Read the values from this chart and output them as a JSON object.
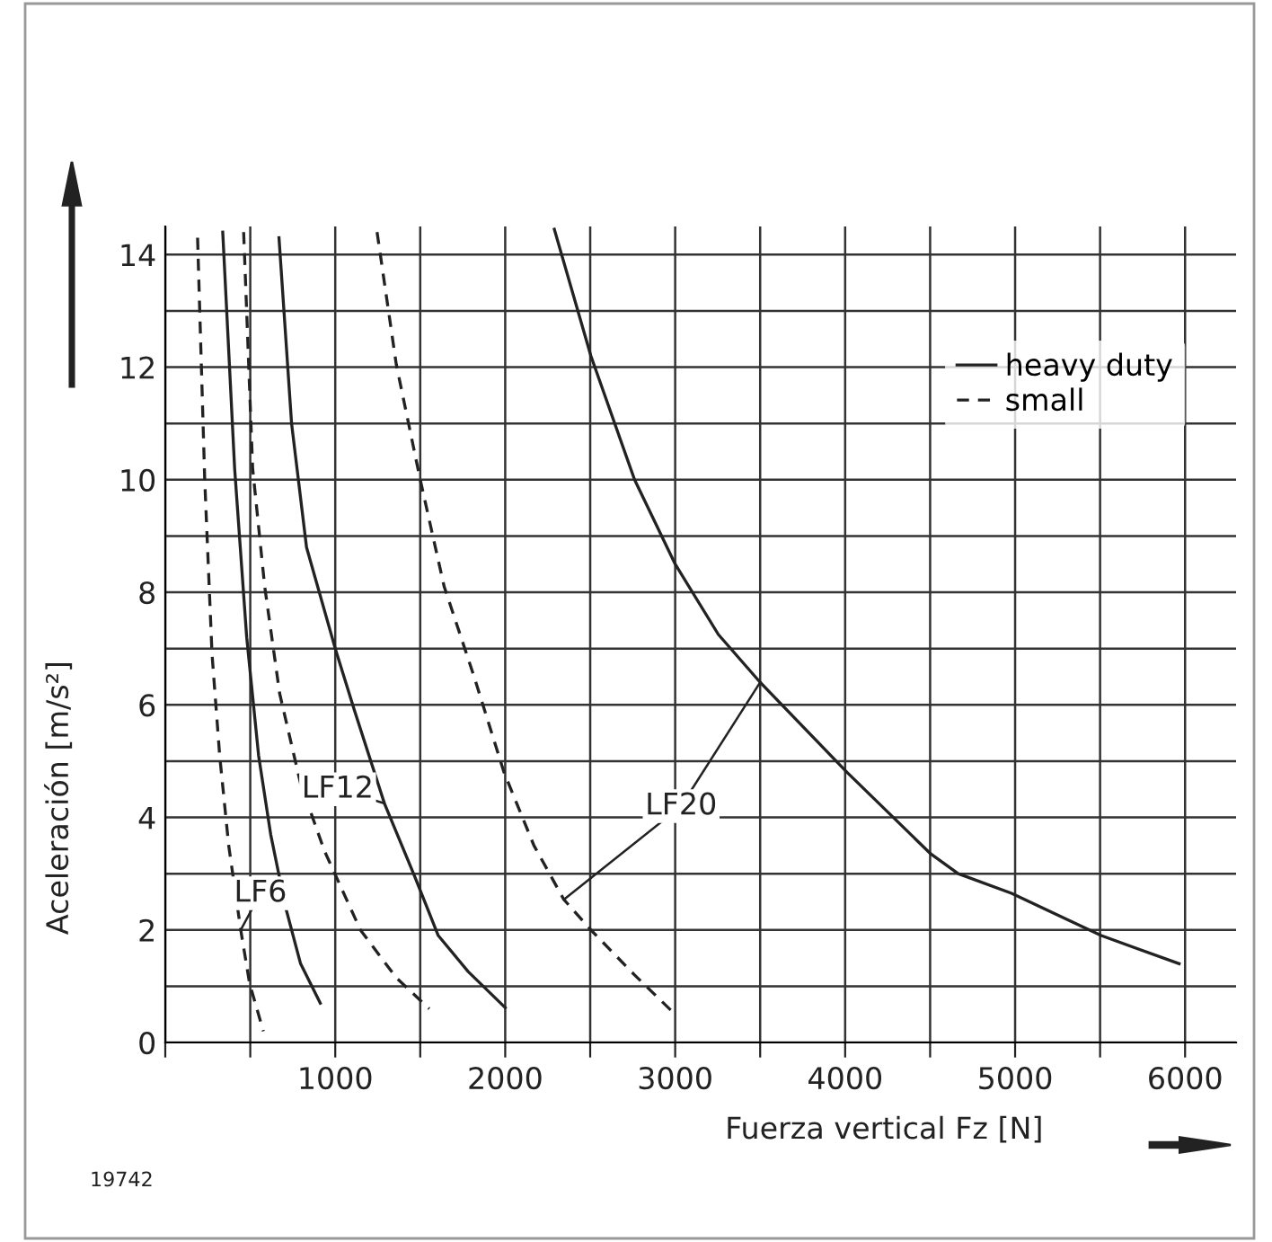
{
  "chart_data": {
    "type": "line",
    "xlabel": "Fuerza vertical Fz [N]",
    "ylabel": "Aceleración [m/s²]",
    "xlim": [
      0,
      6300
    ],
    "ylim": [
      0,
      14.5
    ],
    "xticks": [
      {
        "value": 0,
        "label": null
      },
      {
        "value": 500,
        "label": null
      },
      1000,
      {
        "value": 1500,
        "label": null
      },
      2000,
      {
        "value": 2500,
        "label": null
      },
      3000,
      {
        "value": 3500,
        "label": null
      },
      4000,
      {
        "value": 4500,
        "label": null
      },
      5000,
      {
        "value": 5500,
        "label": null
      },
      6000
    ],
    "yticks": [
      0,
      {
        "value": 1,
        "label": null
      },
      2,
      {
        "value": 3,
        "label": null
      },
      4,
      {
        "value": 5,
        "label": null
      },
      6,
      {
        "value": 7,
        "label": null
      },
      8,
      {
        "value": 9,
        "label": null
      },
      10,
      {
        "value": 11,
        "label": null
      },
      12,
      {
        "value": 13,
        "label": null
      },
      14
    ],
    "grid": true,
    "legend": "top right",
    "marker": "none",
    "series": [
      {
        "name": "heavy duty",
        "color": "#222222",
        "line_style": "solid",
        "x": [
          338,
          408,
          479,
          549,
          620,
          708,
          796,
          912
        ],
        "values": [
          14.4,
          10.2,
          7.2,
          5.1,
          3.7,
          2.4,
          1.4,
          0.7
        ]
      },
      {
        "name": "small",
        "color": "#222222",
        "line_style": "dashed",
        "x": [
          190,
          232,
          275,
          320,
          373,
          444,
          496,
          577
        ],
        "values": [
          14.3,
          10.0,
          6.9,
          5.1,
          3.5,
          2.0,
          1.05,
          0.2
        ]
      },
      {
        "color": "#222222",
        "line_style": "solid",
        "x": [
          669,
          743,
          831,
          1000,
          1113,
          1289,
          1465,
          1606,
          1782,
          2000
        ],
        "values": [
          14.3,
          11.0,
          8.8,
          7.0,
          5.9,
          4.25,
          2.97,
          1.9,
          1.26,
          0.62
        ]
      },
      {
        "color": "#222222",
        "line_style": "dashed",
        "x": [
          461,
          514,
          585,
          673,
          796,
          937,
          1148,
          1359,
          1553
        ],
        "values": [
          14.4,
          10.2,
          8.1,
          6.2,
          4.6,
          3.4,
          2.0,
          1.15,
          0.6
        ]
      },
      {
        "color": "#222222",
        "line_style": "solid",
        "x": [
          2289,
          2504,
          2761,
          3000,
          3254,
          3500,
          4011,
          4504,
          4665,
          4979,
          5507,
          5965
        ],
        "values": [
          14.45,
          12.2,
          10.0,
          8.5,
          7.25,
          6.4,
          4.8,
          3.35,
          3.0,
          2.65,
          1.9,
          1.4
        ]
      },
      {
        "color": "#222222",
        "line_style": "dashed",
        "x": [
          1246,
          1359,
          1500,
          1641,
          1817,
          1993,
          2169,
          2345,
          2504,
          2761,
          3000
        ],
        "values": [
          14.4,
          12.05,
          10.0,
          8.1,
          6.5,
          4.8,
          3.5,
          2.54,
          2.0,
          1.2,
          0.5
        ]
      }
    ],
    "annotations": [
      {
        "text": "LF6",
        "x": 560,
        "y": 2.65
      },
      {
        "text": "LF12",
        "x": 1014,
        "y": 4.5
      },
      {
        "text": "LF20",
        "x": 3035,
        "y": 4.2
      },
      "19742"
    ]
  }
}
